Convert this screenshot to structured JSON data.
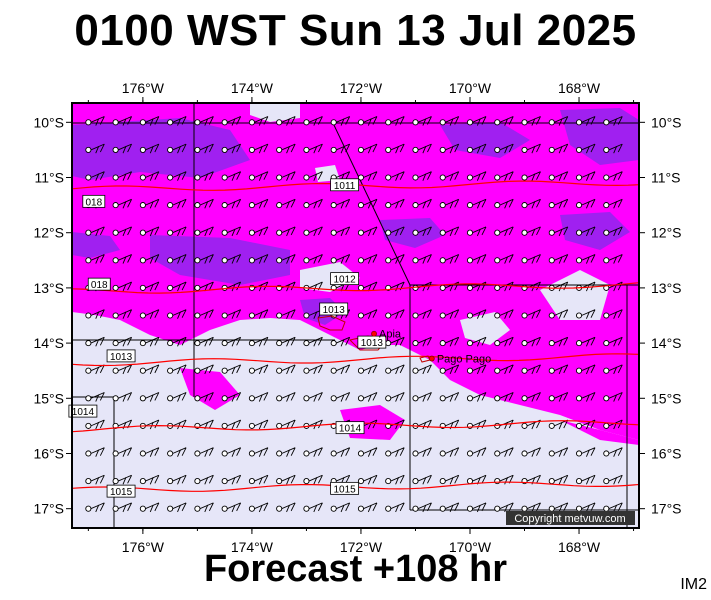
{
  "title": "0100 WST Sun 13 Jul 2025",
  "footer": "Forecast +108 hr",
  "image_code": "IM2",
  "copyright": "Copyright metvuw.com",
  "colors": {
    "background_low": "#e6e6f8",
    "magenta": "#ff00ff",
    "purple": "#a020f0",
    "isobar": "#ff0000"
  },
  "longitude_labels": [
    "176°W",
    "174°W",
    "172°W",
    "170°W",
    "168°W"
  ],
  "latitude_labels": [
    "10°S",
    "11°S",
    "12°S",
    "13°S",
    "14°S",
    "15°S",
    "16°S",
    "17°S"
  ],
  "places": [
    {
      "name": "Apia",
      "lon": -171.76,
      "lat": -13.83
    },
    {
      "name": "Pago Pago",
      "lon": -170.7,
      "lat": -14.28
    }
  ],
  "isobars": [
    {
      "label": "1011",
      "lat": -11.15
    },
    {
      "label": "1012",
      "lat": -13.0
    },
    {
      "label": "1013",
      "lat": -14.3
    },
    {
      "label": "1014",
      "lat": -15.5
    },
    {
      "label": "1015",
      "lat": -16.6
    }
  ],
  "isobar_labels": [
    {
      "text": "1011",
      "lon": -172.3,
      "lat": -11.15
    },
    {
      "text": "1012",
      "lon": -172.3,
      "lat": -12.85
    },
    {
      "text": "1013",
      "lon": -176.4,
      "lat": -14.25
    },
    {
      "text": "1013",
      "lon": -172.5,
      "lat": -13.4
    },
    {
      "text": "1013",
      "lon": -171.8,
      "lat": -14.0
    },
    {
      "text": "1014",
      "lon": -172.2,
      "lat": -15.55
    },
    {
      "text": "1015",
      "lon": -172.3,
      "lat": -16.65
    },
    {
      "text": "1014",
      "lon": -177.1,
      "lat": -15.25
    },
    {
      "text": "1015",
      "lon": -176.4,
      "lat": -16.7
    },
    {
      "text": "018",
      "lon": -176.9,
      "lat": -11.45
    },
    {
      "text": "018",
      "lon": -176.8,
      "lat": -12.95
    }
  ]
}
